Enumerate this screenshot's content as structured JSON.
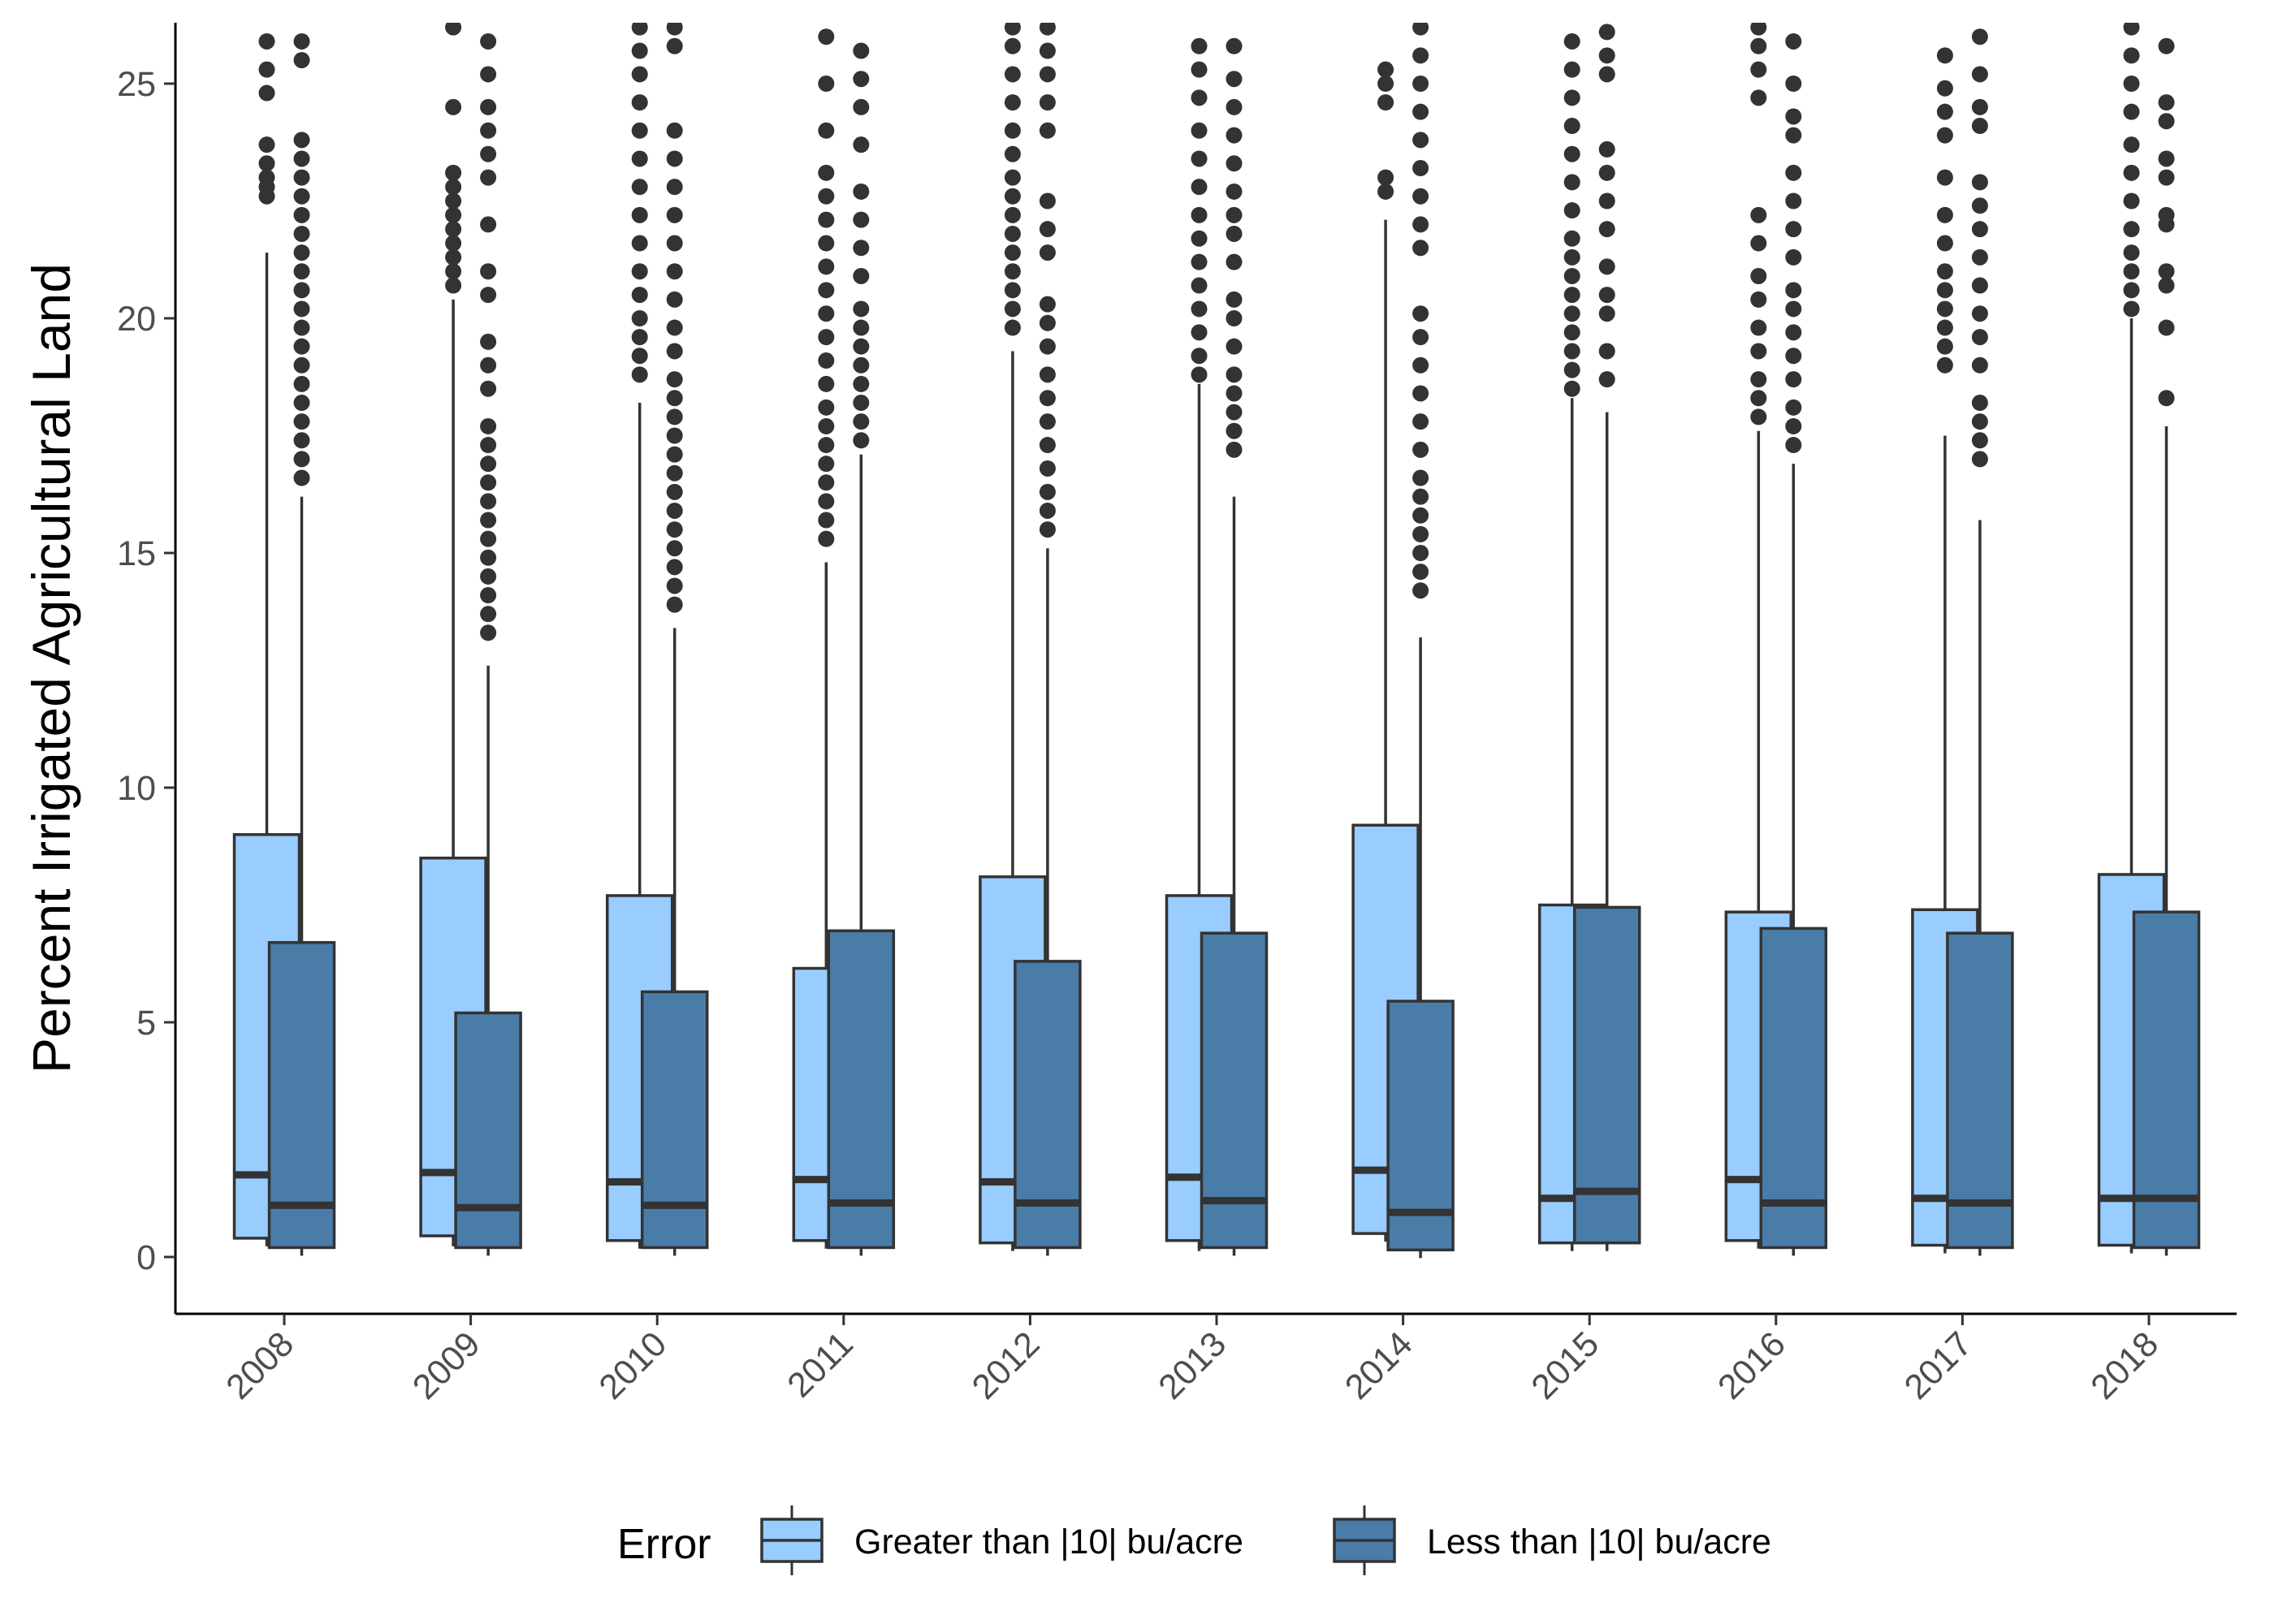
{
  "chart_data": {
    "type": "boxplot",
    "title": "",
    "xlabel": "",
    "ylabel": "Percent Irrigated Agricultural Land",
    "ylim": [
      -1.2,
      26.3
    ],
    "y_ticks": [
      0,
      5,
      10,
      15,
      20,
      25
    ],
    "grid": false,
    "legend": {
      "title": "Error",
      "placement": "bottom"
    },
    "categories": [
      "2008",
      "2009",
      "2010",
      "2011",
      "2012",
      "2013",
      "2014",
      "2015",
      "2016",
      "2017",
      "2018"
    ],
    "series": [
      {
        "name": "Greater than |10| bu/acre",
        "color": "#99ccff",
        "boxes": [
          {
            "min": 0.4,
            "q1": 0.4,
            "median": 1.75,
            "q3": 9.0,
            "max": 21.4,
            "outliers": [
              22.6,
              22.8,
              23.0,
              23.3,
              23.7,
              24.8,
              25.3,
              25.9
            ]
          },
          {
            "min": 0.4,
            "q1": 0.45,
            "median": 1.8,
            "q3": 8.5,
            "max": 20.4,
            "outliers": [
              20.7,
              21.0,
              21.3,
              21.6,
              21.9,
              22.2,
              22.5,
              22.8,
              23.1,
              24.5,
              26.2
            ]
          },
          {
            "min": 0.35,
            "q1": 0.35,
            "median": 1.6,
            "q3": 7.7,
            "max": 18.2,
            "outliers": [
              18.8,
              19.2,
              19.6,
              20.0,
              20.5,
              21.0,
              21.6,
              22.2,
              22.8,
              23.4,
              24.0,
              24.6,
              25.2,
              25.7,
              26.2
            ]
          },
          {
            "min": 0.35,
            "q1": 0.35,
            "median": 1.65,
            "q3": 6.15,
            "max": 14.8,
            "outliers": [
              15.3,
              15.7,
              16.1,
              16.5,
              16.9,
              17.3,
              17.7,
              18.1,
              18.6,
              19.1,
              19.6,
              20.1,
              20.6,
              21.1,
              21.6,
              22.1,
              22.6,
              23.1,
              24.0,
              25.0,
              26.0
            ]
          },
          {
            "min": 0.3,
            "q1": 0.3,
            "median": 1.6,
            "q3": 8.1,
            "max": 19.3,
            "outliers": [
              19.8,
              20.2,
              20.6,
              21.0,
              21.4,
              21.8,
              22.2,
              22.6,
              23.0,
              23.5,
              24.0,
              24.6,
              25.2,
              25.8,
              26.2
            ]
          },
          {
            "min": 0.3,
            "q1": 0.35,
            "median": 1.7,
            "q3": 7.7,
            "max": 18.6,
            "outliers": [
              18.8,
              19.2,
              19.7,
              20.2,
              20.7,
              21.2,
              21.7,
              22.2,
              22.8,
              23.4,
              24.0,
              24.7,
              25.3,
              25.8
            ]
          },
          {
            "min": 0.5,
            "q1": 0.5,
            "median": 1.85,
            "q3": 9.2,
            "max": 22.1,
            "outliers": [
              22.7,
              23.0,
              24.6,
              25.0,
              25.3
            ]
          },
          {
            "min": 0.3,
            "q1": 0.3,
            "median": 1.25,
            "q3": 7.5,
            "max": 18.3,
            "outliers": [
              18.5,
              18.9,
              19.3,
              19.7,
              20.1,
              20.5,
              20.9,
              21.3,
              21.7,
              22.3,
              22.9,
              23.5,
              24.1,
              24.7,
              25.3,
              25.9
            ]
          },
          {
            "min": 0.35,
            "q1": 0.35,
            "median": 1.65,
            "q3": 7.35,
            "max": 17.6,
            "outliers": [
              17.9,
              18.3,
              18.7,
              19.3,
              19.8,
              20.4,
              20.9,
              21.6,
              22.2,
              24.7,
              25.3,
              25.8,
              26.2
            ]
          },
          {
            "min": 0.25,
            "q1": 0.25,
            "median": 1.25,
            "q3": 7.4,
            "max": 17.5,
            "outliers": [
              19.0,
              19.4,
              19.8,
              20.2,
              20.6,
              21.0,
              21.6,
              22.2,
              23.0,
              23.9,
              24.4,
              24.9,
              25.6
            ]
          },
          {
            "min": 0.25,
            "q1": 0.25,
            "median": 1.25,
            "q3": 8.15,
            "max": 20.0,
            "outliers": [
              20.2,
              20.6,
              21.0,
              21.4,
              21.9,
              22.5,
              23.1,
              23.7,
              24.4,
              25.0,
              25.6,
              26.2
            ]
          }
        ]
      },
      {
        "name": "Less than |10| bu/acre",
        "color": "#4a7ca8",
        "boxes": [
          {
            "min": 0.2,
            "q1": 0.2,
            "median": 1.1,
            "q3": 6.7,
            "max": 16.2,
            "outliers": [
              16.6,
              17.0,
              17.4,
              17.8,
              18.2,
              18.6,
              19.0,
              19.4,
              19.8,
              20.2,
              20.6,
              21.0,
              21.4,
              21.8,
              22.2,
              22.6,
              23.0,
              23.4,
              23.8,
              25.5,
              25.9
            ]
          },
          {
            "min": 0.2,
            "q1": 0.2,
            "median": 1.05,
            "q3": 5.2,
            "max": 12.6,
            "outliers": [
              13.3,
              13.7,
              14.1,
              14.5,
              14.9,
              15.3,
              15.7,
              16.1,
              16.5,
              16.9,
              17.3,
              17.7,
              18.5,
              19.0,
              19.5,
              20.5,
              21.0,
              22.0,
              23.0,
              23.5,
              24.0,
              24.5,
              25.2,
              25.9
            ]
          },
          {
            "min": 0.2,
            "q1": 0.2,
            "median": 1.1,
            "q3": 5.65,
            "max": 13.4,
            "outliers": [
              13.9,
              14.3,
              14.7,
              15.1,
              15.5,
              15.9,
              16.3,
              16.7,
              17.1,
              17.5,
              17.9,
              18.3,
              18.7,
              19.3,
              19.8,
              20.4,
              21.0,
              21.6,
              22.2,
              22.8,
              23.4,
              24.0,
              25.8,
              26.2
            ]
          },
          {
            "min": 0.2,
            "q1": 0.2,
            "median": 1.15,
            "q3": 6.95,
            "max": 17.1,
            "outliers": [
              17.4,
              17.8,
              18.2,
              18.6,
              19.0,
              19.4,
              19.8,
              20.2,
              20.9,
              21.5,
              22.1,
              22.7,
              23.7,
              24.5,
              25.1,
              25.7
            ]
          },
          {
            "min": 0.2,
            "q1": 0.2,
            "median": 1.15,
            "q3": 6.3,
            "max": 15.1,
            "outliers": [
              15.5,
              15.9,
              16.3,
              16.8,
              17.3,
              17.8,
              18.3,
              18.8,
              19.4,
              19.9,
              20.3,
              21.4,
              21.9,
              22.5,
              24.0,
              24.6,
              25.2,
              25.7,
              26.2
            ]
          },
          {
            "min": 0.2,
            "q1": 0.2,
            "median": 1.2,
            "q3": 6.9,
            "max": 16.2,
            "outliers": [
              17.2,
              17.6,
              18.0,
              18.4,
              18.8,
              19.4,
              20.0,
              20.4,
              21.2,
              21.8,
              22.2,
              22.7,
              23.3,
              23.9,
              24.5,
              25.1,
              25.8
            ]
          },
          {
            "min": 0.15,
            "q1": 0.15,
            "median": 0.95,
            "q3": 5.45,
            "max": 13.2,
            "outliers": [
              14.2,
              14.6,
              15.0,
              15.4,
              15.8,
              16.2,
              16.6,
              17.2,
              17.8,
              18.4,
              19.0,
              19.6,
              20.1,
              21.5,
              22.0,
              22.6,
              23.2,
              23.8,
              24.4,
              25.0,
              25.6,
              26.2
            ]
          },
          {
            "min": 0.3,
            "q1": 0.3,
            "median": 1.4,
            "q3": 7.45,
            "max": 18.0,
            "outliers": [
              18.7,
              19.3,
              20.1,
              20.5,
              21.1,
              21.9,
              22.5,
              23.1,
              23.6,
              25.2,
              25.6,
              26.1
            ]
          },
          {
            "min": 0.2,
            "q1": 0.2,
            "median": 1.15,
            "q3": 7.0,
            "max": 16.9,
            "outliers": [
              17.3,
              17.7,
              18.1,
              18.7,
              19.2,
              19.7,
              20.2,
              20.6,
              21.3,
              21.9,
              22.5,
              23.1,
              23.9,
              24.3,
              25.0,
              25.9
            ]
          },
          {
            "min": 0.2,
            "q1": 0.2,
            "median": 1.15,
            "q3": 6.9,
            "max": 15.7,
            "outliers": [
              17.0,
              17.4,
              17.8,
              18.2,
              19.0,
              19.6,
              20.1,
              20.7,
              21.3,
              21.9,
              22.4,
              22.9,
              24.1,
              24.5,
              25.2,
              26.0
            ]
          },
          {
            "min": 0.2,
            "q1": 0.2,
            "median": 1.25,
            "q3": 7.35,
            "max": 17.7,
            "outliers": [
              18.3,
              19.8,
              20.7,
              21.0,
              22.0,
              22.2,
              23.0,
              23.4,
              24.2,
              24.6,
              25.8
            ]
          }
        ]
      }
    ]
  }
}
